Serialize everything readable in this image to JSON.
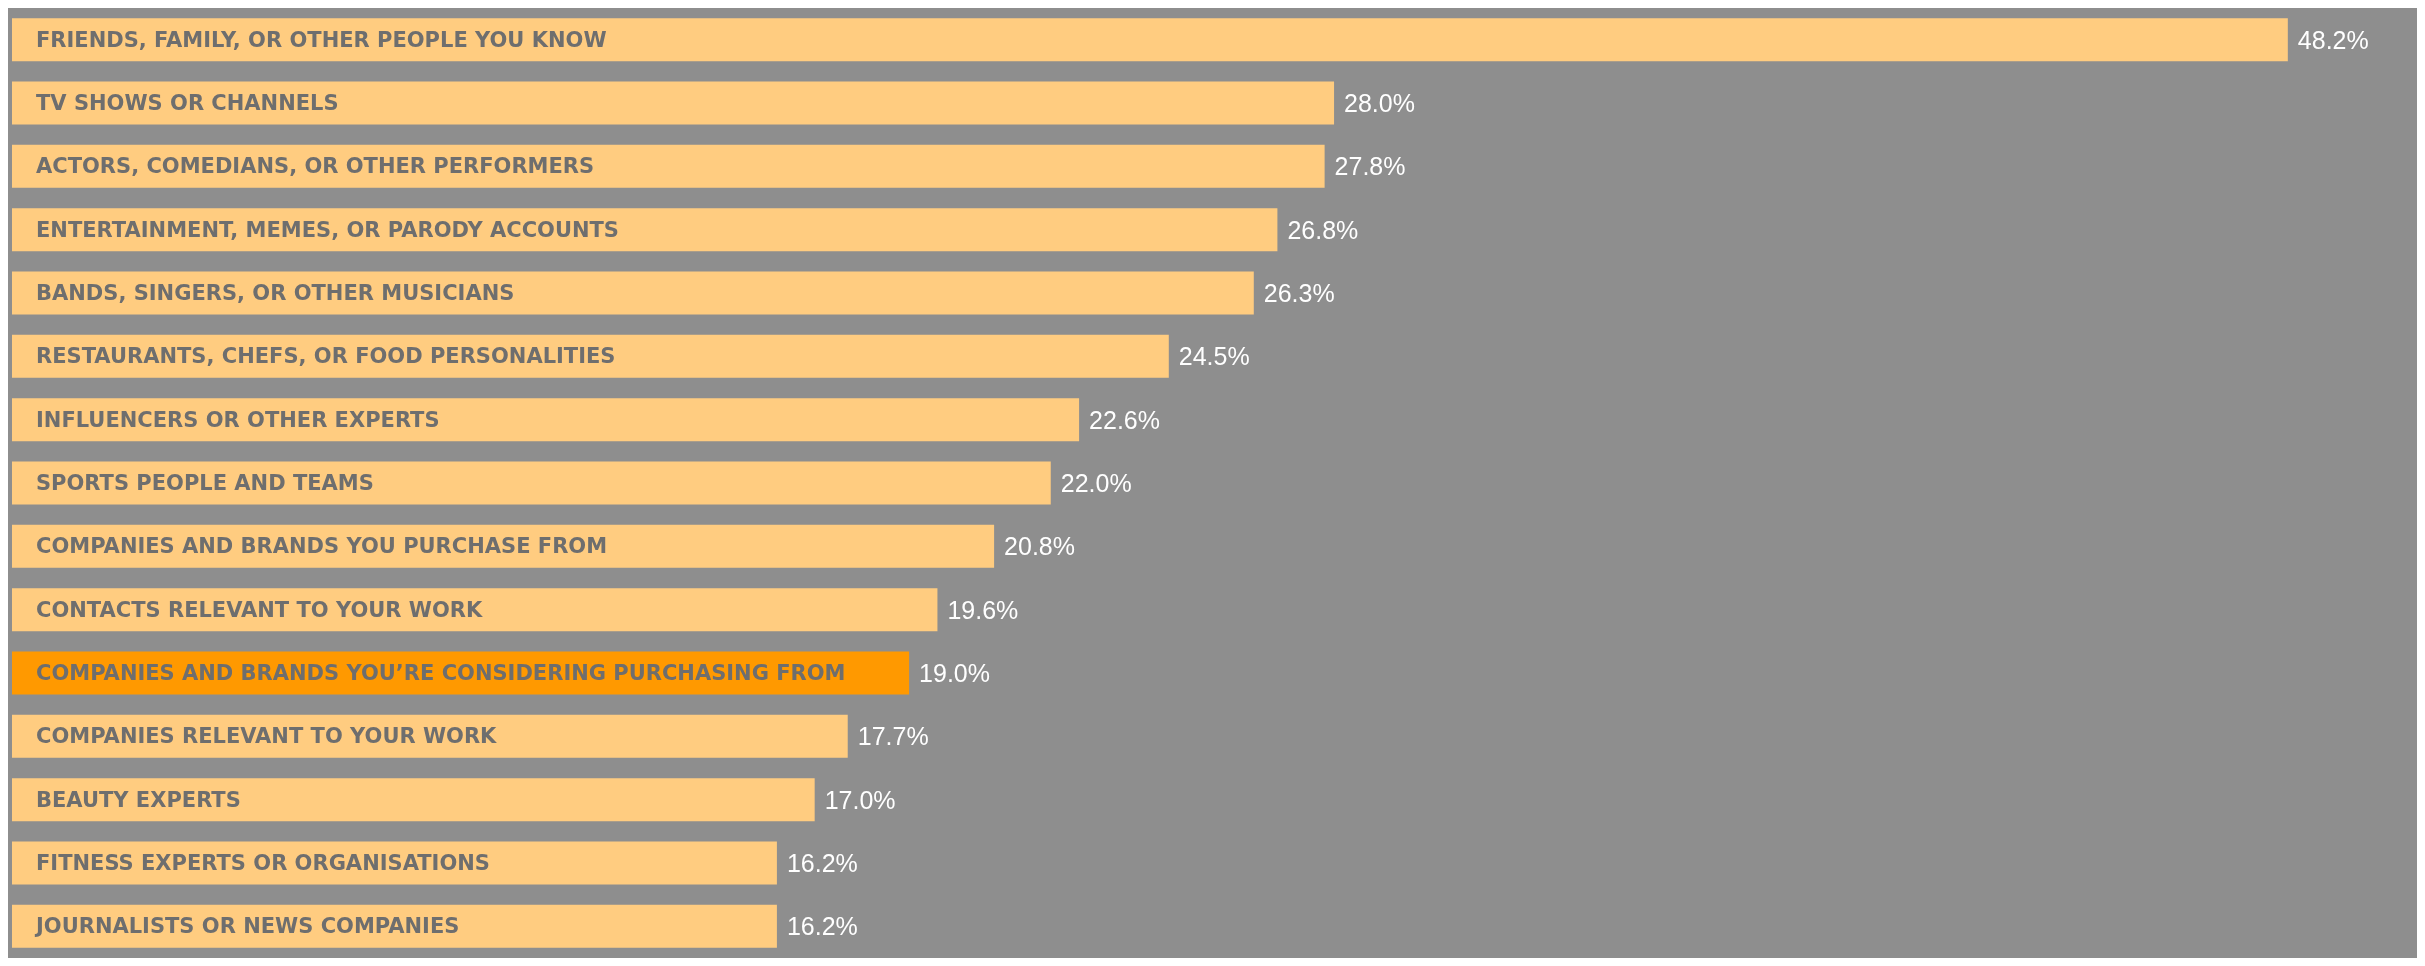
{
  "chart_data": {
    "type": "bar",
    "orientation": "horizontal",
    "categories": [
      "FRIENDS, FAMILY, OR OTHER PEOPLE YOU KNOW",
      "TV SHOWS OR CHANNELS",
      "ACTORS, COMEDIANS, OR OTHER PERFORMERS",
      "ENTERTAINMENT, MEMES, OR PARODY ACCOUNTS",
      "BANDS, SINGERS, OR OTHER MUSICIANS",
      "RESTAURANTS, CHEFS, OR FOOD PERSONALITIES",
      "INFLUENCERS OR OTHER EXPERTS",
      "SPORTS PEOPLE AND TEAMS",
      "COMPANIES AND BRANDS YOU PURCHASE FROM",
      "CONTACTS RELEVANT TO YOUR WORK",
      "COMPANIES AND BRANDS YOU’RE CONSIDERING PURCHASING FROM",
      "COMPANIES RELEVANT TO YOUR WORK",
      "BEAUTY EXPERTS",
      "FITNESS EXPERTS OR ORGANISATIONS",
      "JOURNALISTS OR NEWS COMPANIES"
    ],
    "values": [
      48.2,
      28.0,
      27.8,
      26.8,
      26.3,
      24.5,
      22.6,
      22.0,
      20.8,
      19.6,
      19.0,
      17.7,
      17.0,
      16.2,
      16.2
    ],
    "value_labels": [
      "48.2%",
      "28.0%",
      "27.8%",
      "26.8%",
      "26.3%",
      "24.5%",
      "22.6%",
      "22.0%",
      "20.8%",
      "19.6%",
      "19.0%",
      "17.7%",
      "17.0%",
      "16.2%",
      "16.2%"
    ],
    "colors": [
      "#ffcc80",
      "#ffcc80",
      "#ffcc80",
      "#ffcc80",
      "#ffcc80",
      "#ffcc80",
      "#ffcc80",
      "#ffcc80",
      "#ffcc80",
      "#ffcc80",
      "#ff9900",
      "#ffcc80",
      "#ffcc80",
      "#ffcc80",
      "#ffcc80"
    ]
  }
}
